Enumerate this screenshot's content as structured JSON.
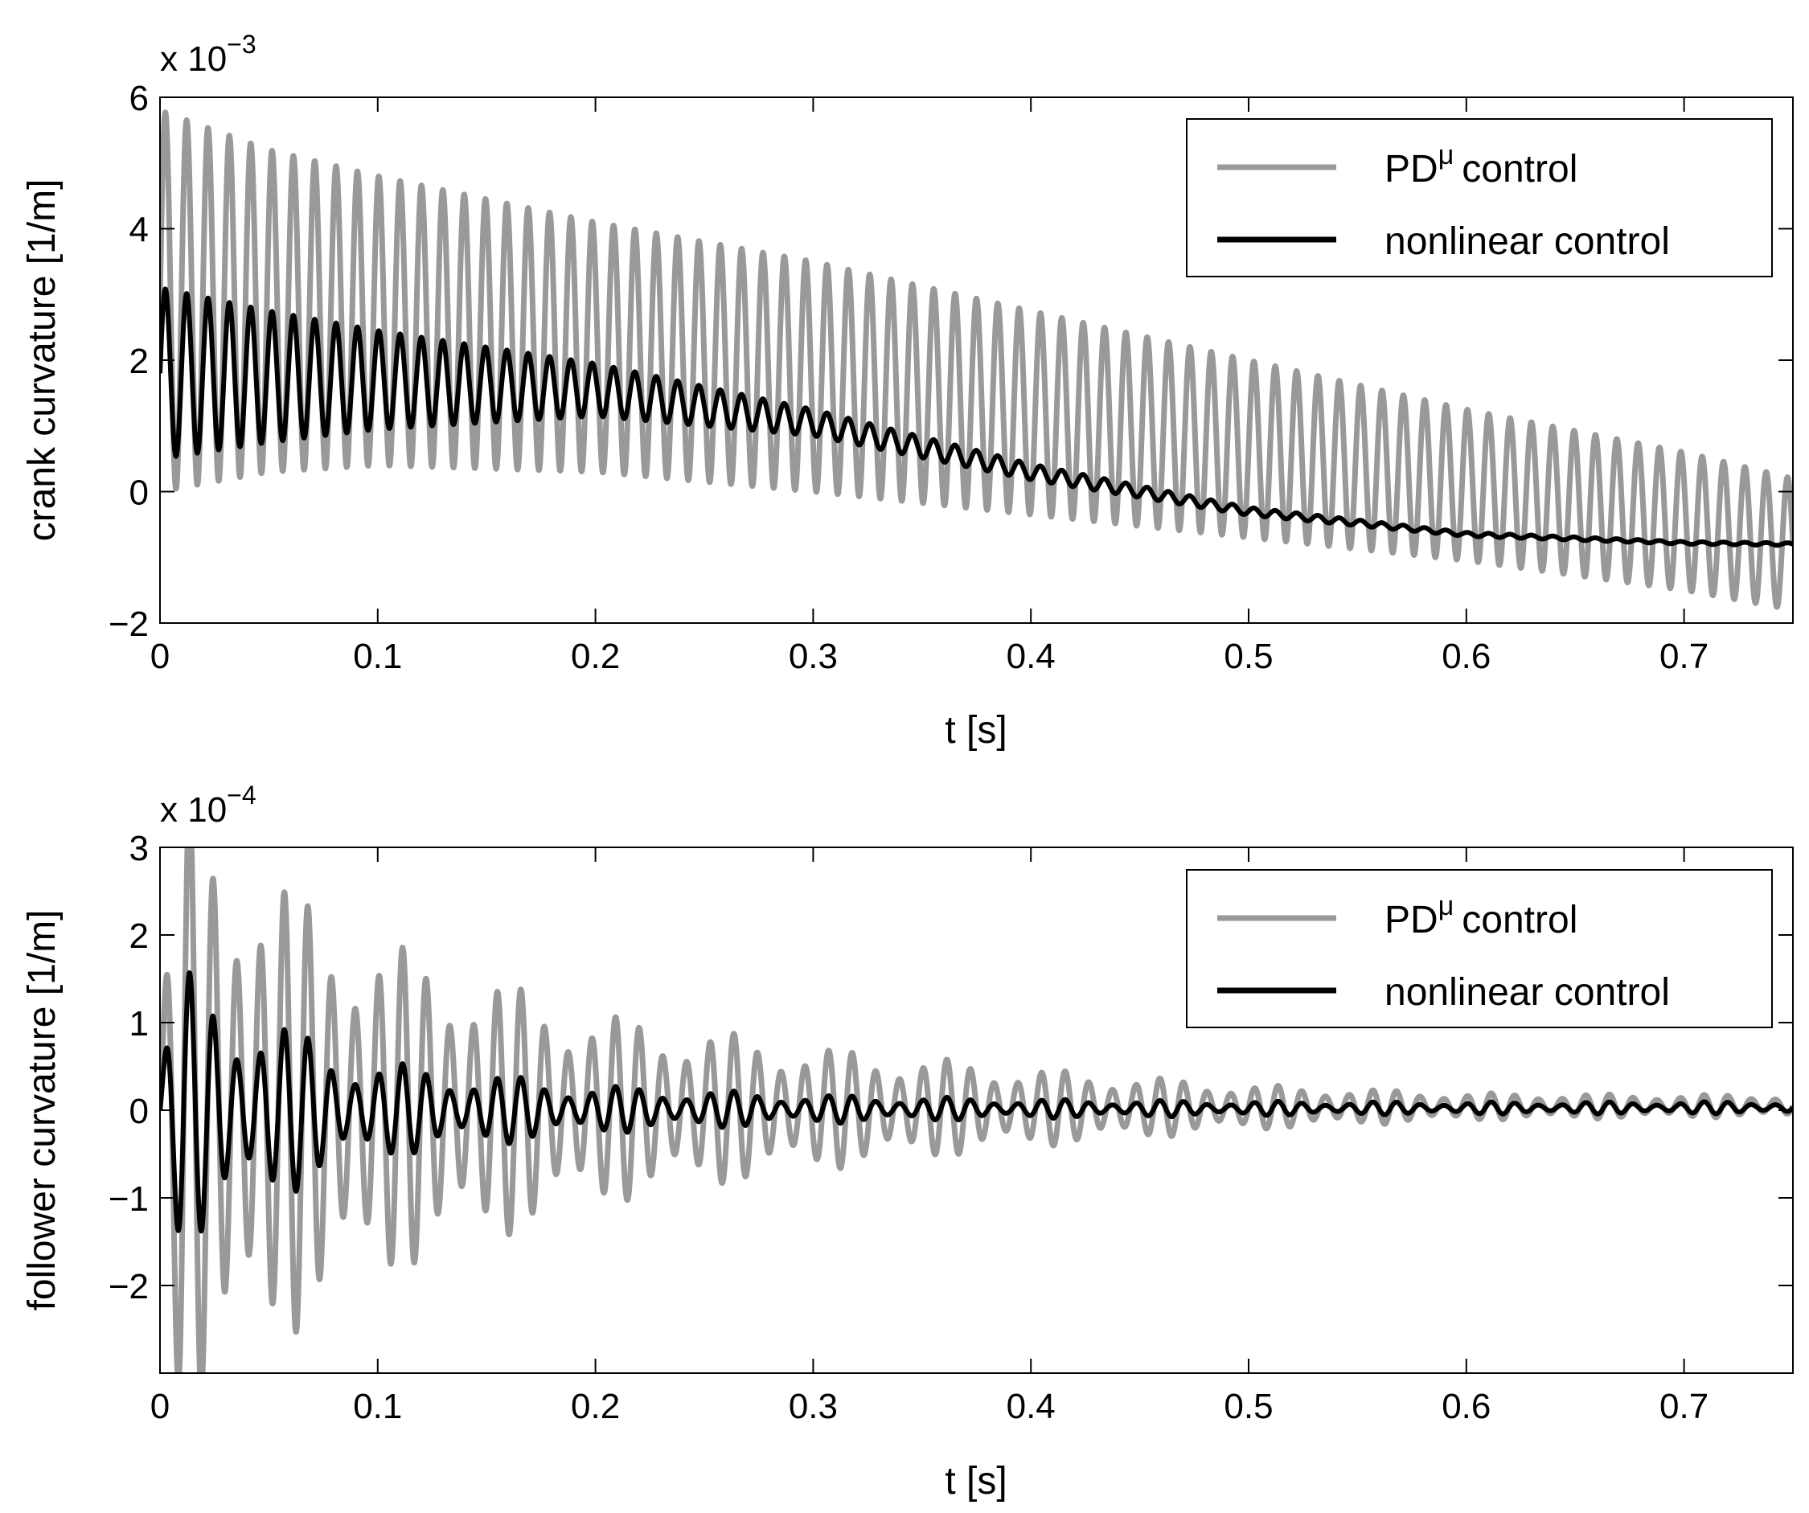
{
  "figure": {
    "background": "#ffffff",
    "axis_color": "#000000"
  },
  "chart_data": [
    {
      "type": "line",
      "id": "crank",
      "title": "",
      "xlabel": "t  [s]",
      "ylabel": "crank curvature  [1/m]",
      "xlim": [
        0,
        0.75
      ],
      "ylim": [
        -2,
        6
      ],
      "xticks": [
        0,
        0.1,
        0.2,
        0.3,
        0.4,
        0.5,
        0.6,
        0.7
      ],
      "xtick_labels": [
        "0",
        "0.1",
        "0.2",
        "0.3",
        "0.4",
        "0.5",
        "0.6",
        "0.7"
      ],
      "yticks": [
        -2,
        0,
        2,
        4,
        6
      ],
      "ytick_labels": [
        "−2",
        "0",
        "2",
        "4",
        "6"
      ],
      "y_scale_label": {
        "base": "x 10",
        "exponent": "−3"
      },
      "legend": {
        "position": "top-right",
        "entries": [
          "control",
          "nonlinear control"
        ],
        "first_entry_prefix": "PD",
        "first_entry_superscript": "μ"
      },
      "series": [
        {
          "name": "PDμ control",
          "color": "#999999",
          "model": "offset + amplitude * sin(2*pi*frequency*t)",
          "frequency_hz": 102,
          "offset_points": {
            "t": [
              0,
              0.05,
              0.1,
              0.2,
              0.3,
              0.4,
              0.5,
              0.6,
              0.7,
              0.75
            ],
            "v": [
              2.9,
              2.75,
              2.6,
              2.2,
              1.75,
              1.2,
              0.65,
              0.1,
              -0.45,
              -0.8
            ]
          },
          "amplitude_points": {
            "t": [
              0,
              0.05,
              0.1,
              0.2,
              0.3,
              0.4,
              0.5,
              0.6,
              0.7,
              0.75
            ],
            "v": [
              2.9,
              2.45,
              2.2,
              1.9,
              1.75,
              1.55,
              1.35,
              1.15,
              1.05,
              1.0
            ]
          }
        },
        {
          "name": "nonlinear control",
          "color": "#000000",
          "model": "offset + amplitude * sin(2*pi*frequency*t)",
          "frequency_hz": 102,
          "offset_points": {
            "t": [
              0,
              0.05,
              0.1,
              0.2,
              0.3,
              0.4,
              0.5,
              0.6,
              0.7,
              0.75
            ],
            "v": [
              1.8,
              1.75,
              1.7,
              1.55,
              1.05,
              0.3,
              -0.3,
              -0.65,
              -0.78,
              -0.8
            ]
          },
          "amplitude_points": {
            "t": [
              0,
              0.05,
              0.1,
              0.2,
              0.3,
              0.4,
              0.5,
              0.6,
              0.7,
              0.75
            ],
            "v": [
              1.3,
              1.0,
              0.75,
              0.4,
              0.2,
              0.12,
              0.06,
              0.03,
              0.02,
              0.02
            ]
          }
        }
      ]
    },
    {
      "type": "line",
      "id": "follower",
      "title": "",
      "xlabel": "t  [s]",
      "ylabel": "follower curvature  [1/m]",
      "xlim": [
        0,
        0.75
      ],
      "ylim": [
        -3,
        3
      ],
      "xticks": [
        0,
        0.1,
        0.2,
        0.3,
        0.4,
        0.5,
        0.6,
        0.7
      ],
      "xtick_labels": [
        "0",
        "0.1",
        "0.2",
        "0.3",
        "0.4",
        "0.5",
        "0.6",
        "0.7"
      ],
      "yticks": [
        -2,
        -1,
        0,
        1,
        2,
        3
      ],
      "ytick_labels": [
        "−2",
        "−1",
        "0",
        "1",
        "2",
        "3"
      ],
      "y_scale_label": {
        "base": "x 10",
        "exponent": "−4"
      },
      "legend": {
        "position": "top-right",
        "entries": [
          "control",
          "nonlinear control"
        ],
        "first_entry_prefix": "PD",
        "first_entry_superscript": "μ"
      },
      "series": [
        {
          "name": "PDμ control",
          "color": "#999999",
          "model": "offset + amplitude * sin(2*pi*frequency*t) * (1 + beat*sin(2*pi*beat_frequency*t))",
          "frequency_hz": 92,
          "beat": 0.3,
          "beat_frequency_hz": 20,
          "offset_points": {
            "t": [
              0,
              0.75
            ],
            "v": [
              0,
              0.05
            ]
          },
          "amplitude_points": {
            "t": [
              0,
              0.01,
              0.03,
              0.05,
              0.1,
              0.2,
              0.3,
              0.4,
              0.5,
              0.6,
              0.7,
              0.75
            ],
            "v": [
              0.8,
              2.8,
              2.5,
              2.1,
              1.5,
              0.85,
              0.55,
              0.35,
              0.2,
              0.12,
              0.1,
              0.1
            ]
          }
        },
        {
          "name": "nonlinear control",
          "color": "#000000",
          "model": "offset + amplitude * sin(2*pi*frequency*t) * (1 + beat*sin(2*pi*beat_frequency*t))",
          "frequency_hz": 92,
          "beat": 0.4,
          "beat_frequency_hz": 20,
          "offset_points": {
            "t": [
              0,
              0.75
            ],
            "v": [
              0,
              0.03
            ]
          },
          "amplitude_points": {
            "t": [
              0,
              0.01,
              0.03,
              0.05,
              0.1,
              0.2,
              0.3,
              0.4,
              0.5,
              0.6,
              0.7,
              0.75
            ],
            "v": [
              0.4,
              1.15,
              1.0,
              0.75,
              0.4,
              0.2,
              0.12,
              0.08,
              0.06,
              0.05,
              0.05,
              0.05
            ]
          }
        }
      ]
    }
  ]
}
